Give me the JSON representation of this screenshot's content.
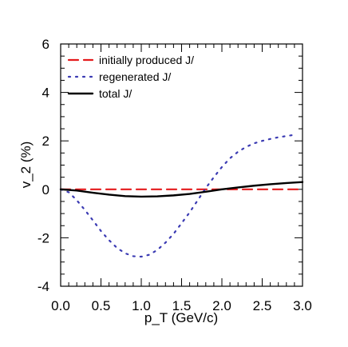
{
  "chart_data": {
    "type": "line",
    "xlabel": "p_T (GeV/c)",
    "ylabel": "v_2 (%)",
    "xlim": [
      0.0,
      3.0
    ],
    "ylim": [
      -4,
      6
    ],
    "x_ticks": [
      "0.0",
      "0.5",
      "1.0",
      "1.5",
      "2.0",
      "2.5",
      "3.0"
    ],
    "y_ticks": [
      "-4",
      "-2",
      "0",
      "2",
      "4",
      "6"
    ],
    "x_tick_values": [
      0.0,
      0.5,
      1.0,
      1.5,
      2.0,
      2.5,
      3.0
    ],
    "y_tick_values": [
      -4,
      -2,
      0,
      2,
      4,
      6
    ],
    "legend_position": "top-left",
    "series": [
      {
        "name": "initially produced J/",
        "color": "#e41a1c",
        "dash": "dashed",
        "x": [
          0.0,
          0.5,
          1.0,
          1.5,
          2.0,
          2.5,
          3.0
        ],
        "y": [
          0.0,
          0.0,
          0.0,
          0.0,
          0.0,
          0.0,
          0.0
        ]
      },
      {
        "name": "regenerated J/",
        "color": "#3b3bb3",
        "dash": "dotted",
        "x": [
          0.0,
          0.1,
          0.2,
          0.3,
          0.4,
          0.5,
          0.6,
          0.7,
          0.8,
          0.9,
          1.0,
          1.1,
          1.2,
          1.3,
          1.4,
          1.5,
          1.6,
          1.7,
          1.8,
          1.9,
          2.0,
          2.1,
          2.2,
          2.3,
          2.4,
          2.5,
          2.6,
          2.7,
          2.8,
          2.9
        ],
        "y": [
          0.0,
          -0.12,
          -0.45,
          -0.85,
          -1.28,
          -1.72,
          -2.1,
          -2.42,
          -2.64,
          -2.76,
          -2.78,
          -2.7,
          -2.5,
          -2.2,
          -1.84,
          -1.4,
          -0.95,
          -0.45,
          0.05,
          0.5,
          0.92,
          1.28,
          1.55,
          1.75,
          1.9,
          2.0,
          2.08,
          2.15,
          2.2,
          2.25
        ]
      },
      {
        "name": "total J/",
        "color": "#000000",
        "dash": "solid",
        "x": [
          0.0,
          0.2,
          0.4,
          0.6,
          0.8,
          1.0,
          1.2,
          1.4,
          1.6,
          1.8,
          2.0,
          2.2,
          2.4,
          2.6,
          2.8,
          3.0
        ],
        "y": [
          0.0,
          -0.05,
          -0.14,
          -0.22,
          -0.28,
          -0.3,
          -0.29,
          -0.25,
          -0.19,
          -0.1,
          0.0,
          0.08,
          0.15,
          0.21,
          0.26,
          0.3
        ]
      }
    ]
  }
}
